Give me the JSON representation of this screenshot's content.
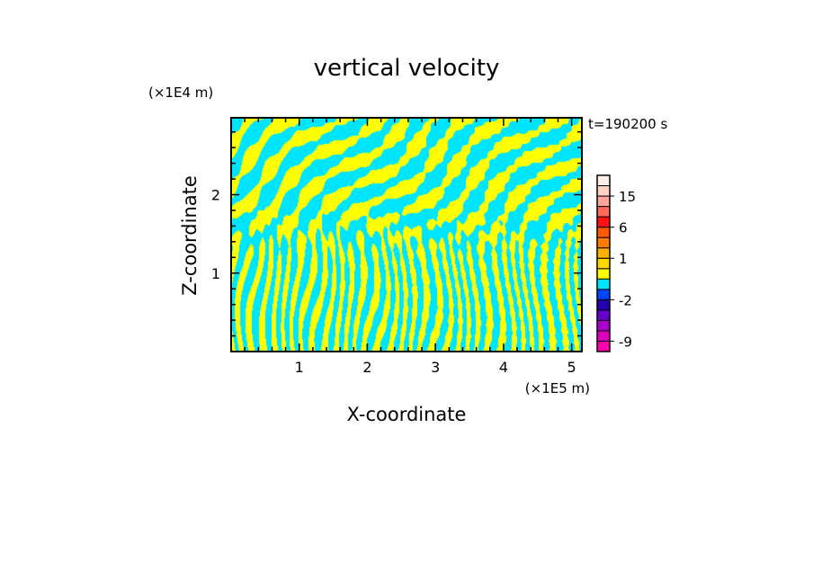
{
  "chart_data": {
    "type": "heatmap",
    "title": "vertical velocity",
    "xlabel": "X-coordinate",
    "ylabel": "Z-coordinate",
    "x_unit": "(×1E5 m)",
    "y_unit": "(×1E4 m)",
    "time_label": "t=190200 s",
    "xlim": [
      0,
      5.15
    ],
    "ylim": [
      0,
      2.98
    ],
    "x_ticks": [
      "1",
      "2",
      "3",
      "4",
      "5"
    ],
    "y_ticks": [
      "1",
      "2"
    ],
    "grid": false,
    "fill_colors": {
      "positive": "#ffff00",
      "negative": "#00e5ff"
    },
    "colorbar": {
      "tick_labels": [
        "15",
        "6",
        "1",
        "-2",
        "-9"
      ],
      "tick_values": [
        15,
        6,
        1,
        -2,
        -9
      ],
      "levels": [
        {
          "lower": -12,
          "color": "#ff00aa"
        },
        {
          "lower": -9,
          "color": "#dd00bb"
        },
        {
          "lower": -6,
          "color": "#aa00cc"
        },
        {
          "lower": -4,
          "color": "#6600cc"
        },
        {
          "lower": -3,
          "color": "#2200aa"
        },
        {
          "lower": -2,
          "color": "#0044ff"
        },
        {
          "lower": -1,
          "color": "#00e5ff"
        },
        {
          "lower": 0,
          "color": "#ffff00"
        },
        {
          "lower": 0.5,
          "color": "#ffd700"
        },
        {
          "lower": 1,
          "color": "#ffb000"
        },
        {
          "lower": 2,
          "color": "#ff7a00"
        },
        {
          "lower": 4,
          "color": "#ff5a00"
        },
        {
          "lower": 6,
          "color": "#ff1010"
        },
        {
          "lower": 9,
          "color": "#ff6a5a"
        },
        {
          "lower": 12,
          "color": "#ffa59a"
        },
        {
          "lower": 15,
          "color": "#ffd0c4"
        },
        {
          "lower": 20,
          "color": "#fff0ea"
        }
      ]
    }
  }
}
